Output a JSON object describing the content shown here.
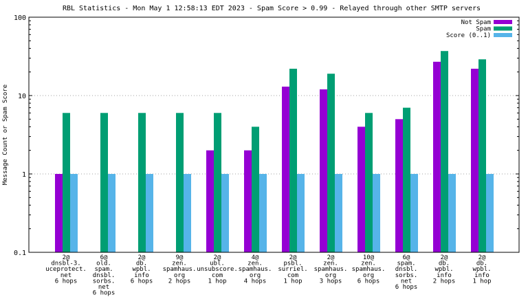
{
  "chart_data": {
    "type": "bar",
    "title": "RBL Statistics - Mon May  1 12:58:13 EDT 2023 - Spam Score > 0.99 - Relayed through other SMTP servers",
    "ylabel": "Message Count or Spam Score",
    "xlabel": "",
    "yscale": "log",
    "ylim": [
      0.1,
      100
    ],
    "yticks": [
      {
        "value": 0.1,
        "label": "0.1"
      },
      {
        "value": 1,
        "label": "1"
      },
      {
        "value": 10,
        "label": "10"
      },
      {
        "value": 100,
        "label": "100"
      }
    ],
    "grid": true,
    "legend_position": "top-right",
    "categories": [
      [
        "2@",
        "dnsbl-3.",
        "uceprotect.",
        "net",
        "6 hops"
      ],
      [
        "6@",
        "old.",
        "spam.",
        "dnsbl.",
        "sorbs.",
        "net",
        "6 hops"
      ],
      [
        "2@",
        "db.",
        "wpbl.",
        "info",
        "6 hops"
      ],
      [
        "9@",
        "zen.",
        "spamhaus.",
        "org",
        "2 hops"
      ],
      [
        "2@",
        "ubl.",
        "unsubscore.",
        "com",
        "1 hop"
      ],
      [
        "4@",
        "zen.",
        "spamhaus.",
        "org",
        "4 hops"
      ],
      [
        "2@",
        "psbl.",
        "surriel.",
        "com",
        "1 hop"
      ],
      [
        "2@",
        "zen.",
        "spamhaus.",
        "org",
        "3 hops"
      ],
      [
        "10@",
        "zen.",
        "spamhaus.",
        "org",
        "6 hops"
      ],
      [
        "6@",
        "spam.",
        "dnsbl.",
        "sorbs.",
        "net",
        "6 hops"
      ],
      [
        "2@",
        "db.",
        "wpbl.",
        "info",
        "2 hops"
      ],
      [
        "2@",
        "db.",
        "wpbl.",
        "info",
        "1 hop"
      ]
    ],
    "series": [
      {
        "name": "Not Spam",
        "color": "#9400d3",
        "values": [
          1,
          null,
          null,
          null,
          2,
          2,
          13,
          12,
          4,
          5,
          27,
          22
        ]
      },
      {
        "name": "Spam",
        "color": "#009e73",
        "values": [
          6,
          6,
          6,
          6,
          6,
          4,
          22,
          19,
          6,
          7,
          37,
          29
        ]
      },
      {
        "name": "Score (0..1)",
        "color": "#56b4e9",
        "values": [
          1,
          1,
          1,
          1,
          1,
          1,
          1,
          1,
          1,
          1,
          1,
          1
        ]
      }
    ]
  }
}
